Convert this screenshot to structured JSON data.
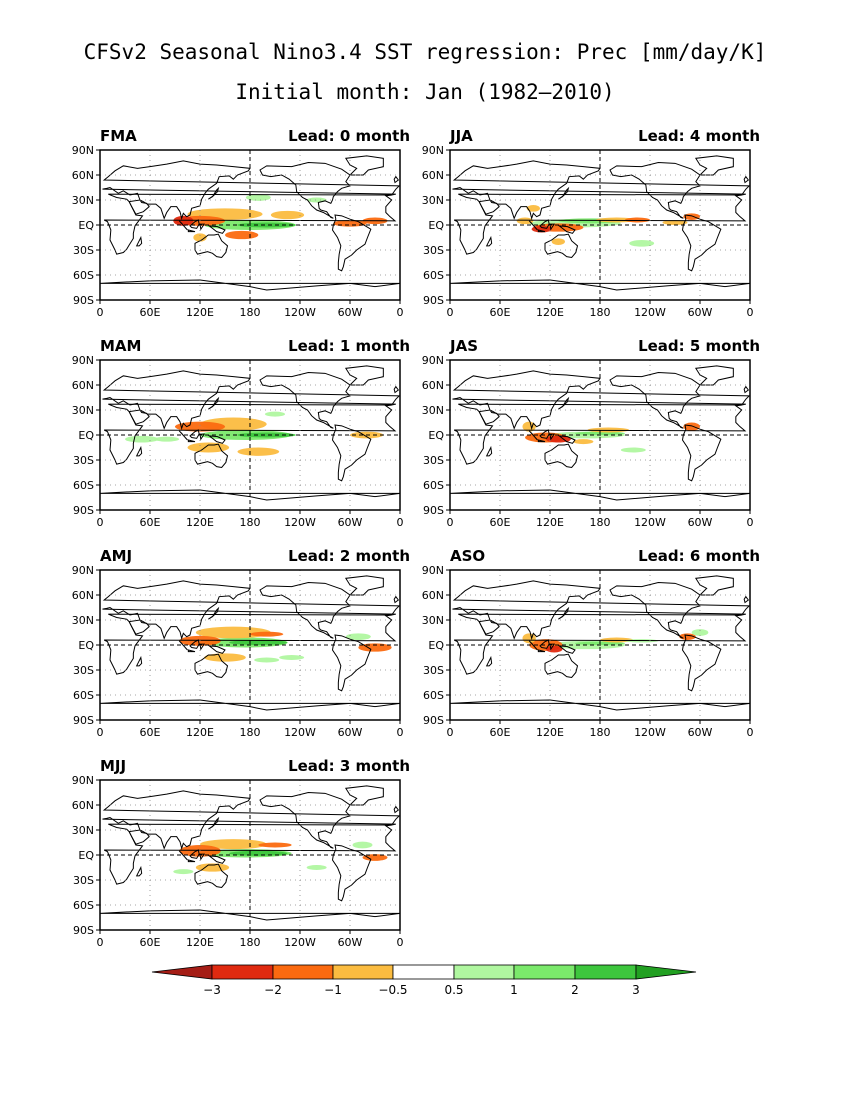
{
  "title": "CFSv2 Seasonal Nino3.4 SST regression: Prec [mm/day/K]",
  "subtitle": "Initial month: Jan (1982–2010)",
  "lat_labels": [
    "90N",
    "60N",
    "30N",
    "EQ",
    "30S",
    "60S",
    "90S"
  ],
  "lon_labels": [
    "0",
    "60E",
    "120E",
    "180",
    "120W",
    "60W",
    "0"
  ],
  "panels": [
    {
      "season": "FMA",
      "lead": "Lead: 0 month"
    },
    {
      "season": "JJA",
      "lead": "Lead: 4 month"
    },
    {
      "season": "MAM",
      "lead": "Lead: 1 month"
    },
    {
      "season": "JAS",
      "lead": "Lead: 5 month"
    },
    {
      "season": "AMJ",
      "lead": "Lead: 2 month"
    },
    {
      "season": "ASO",
      "lead": "Lead: 6 month"
    },
    {
      "season": "MJJ",
      "lead": "Lead: 3 month"
    }
  ],
  "colorbar": {
    "labels": [
      "−3",
      "−2",
      "−1",
      "−0.5",
      "0.5",
      "1",
      "2",
      "3"
    ],
    "colors": [
      "#a51d16",
      "#e02a10",
      "#fb6a10",
      "#fbbc40",
      "#ffffff",
      "#b0f7a0",
      "#7be96b",
      "#3dc63d",
      "#22a022"
    ]
  }
}
